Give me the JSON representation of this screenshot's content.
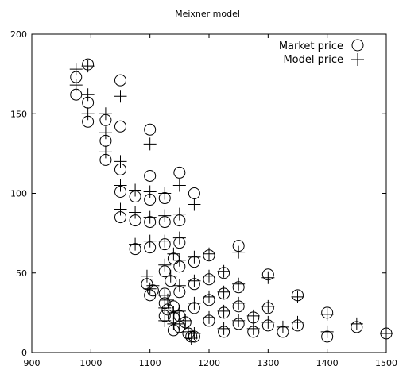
{
  "chart_data": {
    "type": "scatter",
    "title": "Meixner model",
    "xlabel": "",
    "ylabel": "",
    "xlim": [
      900,
      1500
    ],
    "ylim": [
      0,
      200
    ],
    "xticks": [
      "900",
      "1000",
      "1100",
      "1200",
      "1300",
      "1400",
      "1500"
    ],
    "yticks": [
      "0",
      "50",
      "100",
      "150",
      "200"
    ],
    "grid": false,
    "legend_position": "top-right",
    "colors": {
      "axis": "#000000",
      "marker": "#000000",
      "background": "#ffffff"
    },
    "series": [
      {
        "name": "Market price",
        "marker": "circle",
        "points": [
          [
            975,
            173
          ],
          [
            975,
            162
          ],
          [
            995,
            181
          ],
          [
            995,
            157
          ],
          [
            995,
            145
          ],
          [
            1025,
            146
          ],
          [
            1025,
            133
          ],
          [
            1025,
            121
          ],
          [
            1050,
            171
          ],
          [
            1050,
            142
          ],
          [
            1050,
            115
          ],
          [
            1050,
            101
          ],
          [
            1050,
            85
          ],
          [
            1075,
            98
          ],
          [
            1075,
            83
          ],
          [
            1075,
            65
          ],
          [
            1100,
            140
          ],
          [
            1100,
            111
          ],
          [
            1100,
            96
          ],
          [
            1100,
            82
          ],
          [
            1100,
            66
          ],
          [
            1100,
            36
          ],
          [
            1095,
            43
          ],
          [
            1105,
            39
          ],
          [
            1125,
            97
          ],
          [
            1125,
            82
          ],
          [
            1125,
            68
          ],
          [
            1125,
            51
          ],
          [
            1125,
            37
          ],
          [
            1125,
            31
          ],
          [
            1125,
            23
          ],
          [
            1130,
            27
          ],
          [
            1135,
            45
          ],
          [
            1140,
            59
          ],
          [
            1140,
            29
          ],
          [
            1140,
            22
          ],
          [
            1140,
            14
          ],
          [
            1150,
            113
          ],
          [
            1150,
            83
          ],
          [
            1150,
            69
          ],
          [
            1150,
            54
          ],
          [
            1150,
            38
          ],
          [
            1150,
            23
          ],
          [
            1150,
            16
          ],
          [
            1160,
            19
          ],
          [
            1165,
            12
          ],
          [
            1170,
            10
          ],
          [
            1175,
            100
          ],
          [
            1175,
            57
          ],
          [
            1175,
            43
          ],
          [
            1175,
            28
          ],
          [
            1175,
            10
          ],
          [
            1200,
            61
          ],
          [
            1200,
            46
          ],
          [
            1200,
            33
          ],
          [
            1200,
            20
          ],
          [
            1225,
            50
          ],
          [
            1225,
            37
          ],
          [
            1225,
            25
          ],
          [
            1225,
            13
          ],
          [
            1250,
            67
          ],
          [
            1250,
            41
          ],
          [
            1250,
            29
          ],
          [
            1250,
            18
          ],
          [
            1275,
            22
          ],
          [
            1275,
            13
          ],
          [
            1300,
            49
          ],
          [
            1300,
            28
          ],
          [
            1300,
            17
          ],
          [
            1325,
            13
          ],
          [
            1350,
            36
          ],
          [
            1350,
            17
          ],
          [
            1400,
            25
          ],
          [
            1400,
            10
          ],
          [
            1450,
            16
          ],
          [
            1500,
            12
          ]
        ]
      },
      {
        "name": "Model price",
        "marker": "plus",
        "points": [
          [
            975,
            178
          ],
          [
            975,
            168
          ],
          [
            995,
            180
          ],
          [
            995,
            162
          ],
          [
            995,
            150
          ],
          [
            1025,
            150
          ],
          [
            1025,
            138
          ],
          [
            1025,
            126
          ],
          [
            1050,
            161
          ],
          [
            1050,
            120
          ],
          [
            1050,
            105
          ],
          [
            1050,
            90
          ],
          [
            1075,
            102
          ],
          [
            1075,
            88
          ],
          [
            1075,
            68
          ],
          [
            1100,
            131
          ],
          [
            1100,
            101
          ],
          [
            1100,
            85
          ],
          [
            1100,
            70
          ],
          [
            1100,
            40
          ],
          [
            1095,
            48
          ],
          [
            1105,
            42
          ],
          [
            1125,
            100
          ],
          [
            1125,
            86
          ],
          [
            1125,
            70
          ],
          [
            1125,
            55
          ],
          [
            1125,
            36
          ],
          [
            1125,
            28
          ],
          [
            1125,
            20
          ],
          [
            1130,
            33
          ],
          [
            1135,
            48
          ],
          [
            1140,
            62
          ],
          [
            1140,
            25
          ],
          [
            1140,
            18
          ],
          [
            1150,
            105
          ],
          [
            1150,
            87
          ],
          [
            1150,
            72
          ],
          [
            1150,
            58
          ],
          [
            1150,
            42
          ],
          [
            1150,
            26
          ],
          [
            1150,
            18
          ],
          [
            1160,
            20
          ],
          [
            1165,
            13
          ],
          [
            1170,
            9
          ],
          [
            1175,
            93
          ],
          [
            1175,
            60
          ],
          [
            1175,
            45
          ],
          [
            1175,
            31
          ],
          [
            1175,
            12
          ],
          [
            1200,
            62
          ],
          [
            1200,
            48
          ],
          [
            1200,
            35
          ],
          [
            1200,
            22
          ],
          [
            1225,
            51
          ],
          [
            1225,
            38
          ],
          [
            1225,
            26
          ],
          [
            1225,
            15
          ],
          [
            1250,
            63
          ],
          [
            1250,
            43
          ],
          [
            1250,
            31
          ],
          [
            1250,
            20
          ],
          [
            1275,
            23
          ],
          [
            1275,
            15
          ],
          [
            1300,
            47
          ],
          [
            1300,
            29
          ],
          [
            1300,
            19
          ],
          [
            1325,
            16
          ],
          [
            1350,
            35
          ],
          [
            1350,
            19
          ],
          [
            1400,
            24
          ],
          [
            1400,
            13
          ],
          [
            1450,
            18
          ],
          [
            1500,
            12
          ]
        ]
      }
    ]
  }
}
